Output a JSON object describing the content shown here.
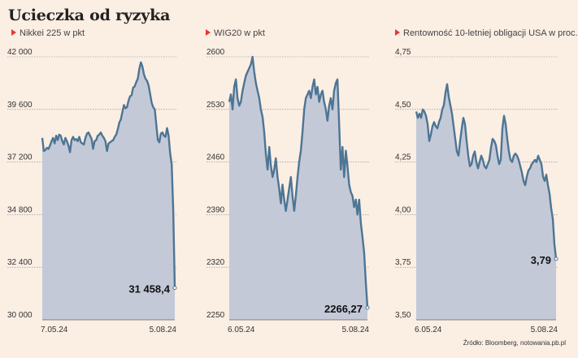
{
  "title": "Ucieczka od ryzyka",
  "source": "Źródło: Bloomberg, notowania.pb.pl",
  "colors": {
    "accent": "#e8352e",
    "line": "#4d7594",
    "fill": "#c4c9d8",
    "grid": "#888888"
  },
  "chart_data": [
    {
      "type": "area",
      "label": "Nikkei 225 w pkt",
      "ylim": [
        30000,
        42000
      ],
      "yticks": [
        "42 000",
        "39 600",
        "37 200",
        "34 800",
        "32 400",
        "30 000"
      ],
      "x_start_label": "7.05.24",
      "x_end_label": "5.08.24",
      "last_value_label": "31 458,4",
      "values": [
        38300,
        37700,
        37750,
        37850,
        37800,
        37950,
        38150,
        38300,
        38050,
        38400,
        38200,
        38450,
        38400,
        38150,
        38000,
        38300,
        38150,
        37950,
        37650,
        38200,
        38350,
        38200,
        38250,
        38150,
        38350,
        38100,
        38050,
        38000,
        38300,
        38500,
        38550,
        38400,
        38250,
        37800,
        38150,
        38200,
        38400,
        38450,
        38550,
        38400,
        38300,
        38150,
        37700,
        38050,
        38100,
        38150,
        38200,
        38350,
        38450,
        38700,
        39000,
        39150,
        39500,
        39800,
        39650,
        39700,
        40000,
        40200,
        40250,
        40600,
        40650,
        40850,
        41000,
        41450,
        41750,
        41550,
        41200,
        41000,
        40900,
        40700,
        40300,
        39900,
        39700,
        39600,
        38900,
        38200,
        38100,
        38500,
        38550,
        38400,
        38350,
        38750,
        38400,
        37600,
        37100,
        35000,
        31458.4
      ]
    },
    {
      "type": "area",
      "label": "WIG20 w pkt",
      "ylim": [
        2250,
        2600
      ],
      "yticks": [
        "2600",
        "2530",
        "2460",
        "2390",
        "2320",
        "2250"
      ],
      "x_start_label": "6.05.24",
      "x_end_label": "5.08.24",
      "last_value_label": "2266,27",
      "values": [
        2540,
        2550,
        2530,
        2560,
        2570,
        2545,
        2535,
        2540,
        2555,
        2565,
        2575,
        2580,
        2585,
        2590,
        2600,
        2580,
        2565,
        2555,
        2545,
        2530,
        2520,
        2500,
        2470,
        2450,
        2480,
        2455,
        2440,
        2450,
        2465,
        2440,
        2425,
        2405,
        2430,
        2410,
        2395,
        2410,
        2425,
        2440,
        2415,
        2395,
        2415,
        2440,
        2460,
        2475,
        2500,
        2530,
        2545,
        2550,
        2555,
        2545,
        2560,
        2570,
        2550,
        2560,
        2540,
        2550,
        2555,
        2540,
        2530,
        2515,
        2535,
        2545,
        2530,
        2555,
        2565,
        2570,
        2510,
        2450,
        2480,
        2440,
        2475,
        2455,
        2430,
        2420,
        2415,
        2400,
        2410,
        2390,
        2410,
        2380,
        2360,
        2340,
        2300,
        2266.27
      ]
    },
    {
      "type": "area",
      "label": "Rentowność 10-letniej obligacji USA w proc.",
      "ylim": [
        3.5,
        4.75
      ],
      "yticks": [
        "4,75",
        "4,50",
        "4,25",
        "4,00",
        "3,75",
        "3,50"
      ],
      "x_start_label": "6.05.24",
      "x_end_label": "5.08.24",
      "last_value_label": "3,79",
      "values": [
        4.49,
        4.46,
        4.48,
        4.46,
        4.5,
        4.49,
        4.47,
        4.43,
        4.35,
        4.38,
        4.42,
        4.44,
        4.42,
        4.41,
        4.44,
        4.46,
        4.5,
        4.52,
        4.58,
        4.62,
        4.56,
        4.52,
        4.48,
        4.42,
        4.36,
        4.3,
        4.28,
        4.35,
        4.41,
        4.46,
        4.43,
        4.35,
        4.28,
        4.23,
        4.24,
        4.28,
        4.3,
        4.25,
        4.22,
        4.25,
        4.28,
        4.26,
        4.23,
        4.22,
        4.24,
        4.26,
        4.32,
        4.36,
        4.35,
        4.33,
        4.28,
        4.24,
        4.26,
        4.41,
        4.47,
        4.43,
        4.36,
        4.3,
        4.26,
        4.25,
        4.28,
        4.29,
        4.28,
        4.26,
        4.23,
        4.2,
        4.16,
        4.14,
        4.18,
        4.21,
        4.22,
        4.24,
        4.25,
        4.26,
        4.25,
        4.28,
        4.26,
        4.24,
        4.18,
        4.16,
        4.19,
        4.14,
        4.1,
        4.03,
        3.98,
        3.86,
        3.79
      ]
    }
  ]
}
